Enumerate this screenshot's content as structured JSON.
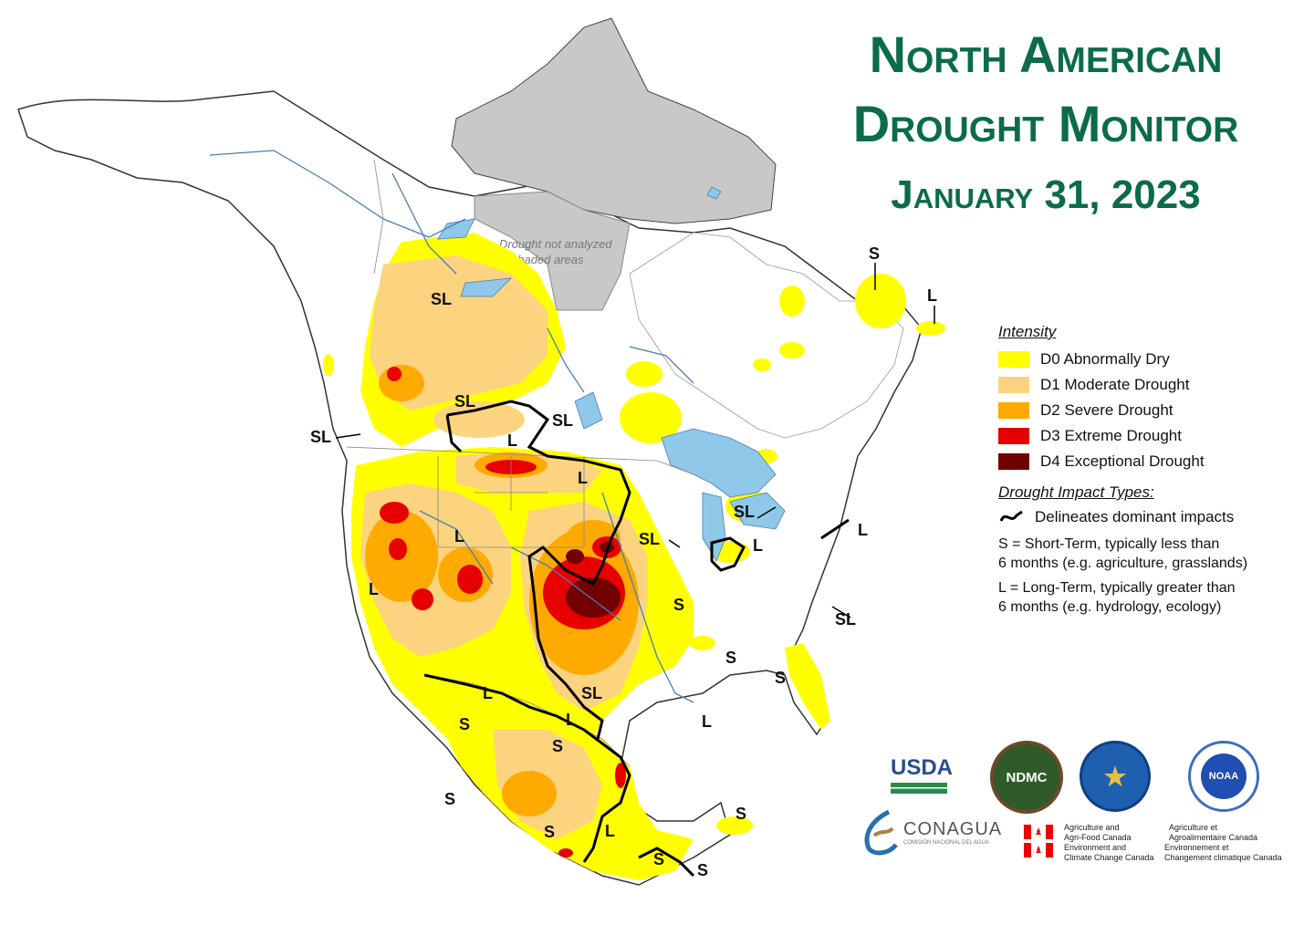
{
  "title": {
    "line1": "North American",
    "line2": "Drought Monitor",
    "date": "January 31, 2023"
  },
  "map": {
    "not_analyzed_note_line1": "Drought not analyzed",
    "not_analyzed_note_line2": "in shaded areas",
    "impact_labels": [
      "SL",
      "SL",
      "SL",
      "SL",
      "L",
      "L",
      "L",
      "SL",
      "SL",
      "L",
      "L",
      "L",
      "S",
      "S",
      "SL",
      "S",
      "L",
      "L",
      "S",
      "S",
      "SL",
      "L",
      "S",
      "S",
      "L",
      "S",
      "S",
      "S",
      "L",
      "S",
      "L",
      "S"
    ]
  },
  "legend": {
    "intensity_header": "Intensity",
    "items": [
      {
        "label": "D0 Abnormally Dry",
        "color": "#ffff00"
      },
      {
        "label": "D1 Moderate Drought",
        "color": "#fcd37f"
      },
      {
        "label": "D2 Severe Drought",
        "color": "#ffaa00"
      },
      {
        "label": "D3 Extreme Drought",
        "color": "#e60000"
      },
      {
        "label": "D4 Exceptional Drought",
        "color": "#730000"
      }
    ],
    "impact_header": "Drought Impact Types:",
    "delineates": "Delineates dominant impacts",
    "s_note_1": "S = Short-Term, typically less than",
    "s_note_2": "6 months (e.g. agriculture, grasslands)",
    "l_note_1": "L = Long-Term, typically greater than",
    "l_note_2": "6 months (e.g. hydrology, ecology)"
  },
  "logos": {
    "usda": "USDA",
    "ndmc": "NDMC",
    "conagua": "CONAGUA",
    "conagua_sub": "COMISIÓN NACIONAL DEL AGUA",
    "agri_en_1": "Agriculture and",
    "agri_en_2": "Agri-Food Canada",
    "agri_fr_1": "Agriculture et",
    "agri_fr_2": "Agroalimentaire Canada",
    "env_en_1": "Environment and",
    "env_en_2": "Climate Change Canada",
    "env_fr_1": "Environnement et",
    "env_fr_2": "Changement climatique Canada",
    "noaa": "NOAA"
  },
  "colors": {
    "title_green": "#0b6b4b",
    "not_analyzed_gray": "#c8c8c8",
    "water_blue": "#8fc8e8"
  }
}
